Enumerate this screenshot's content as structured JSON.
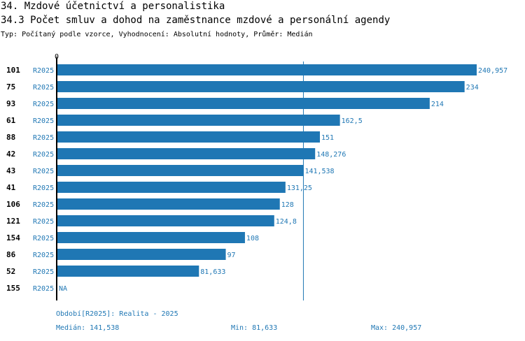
{
  "header": {
    "title": "34. Mzdové účetnictví a personalistika",
    "subtitle": "34.3 Počet smluv a dohod na zaměstnance mzdové a personální agendy",
    "type_line": "Typ: Počítaný podle vzorce, Vyhodnocení: Absolutní hodnoty, Průměr: Medián"
  },
  "footer": {
    "period": "Období[R2025]: Realita - 2025",
    "median": "Medián: 141,538",
    "min": "Min: 81,633",
    "max": "Max: 240,957"
  },
  "colors": {
    "bar": "#1f77b4",
    "label": "#1f77b4",
    "axis": "#000000"
  },
  "chart_data": {
    "type": "bar",
    "orientation": "horizontal",
    "axis_zero_label": "0",
    "xlim": [
      0,
      240.957
    ],
    "median_line": 141.538,
    "rows": [
      {
        "id": "101",
        "series": "R2025",
        "value": 240.957,
        "label": "240,957"
      },
      {
        "id": "75",
        "series": "R2025",
        "value": 234,
        "label": "234"
      },
      {
        "id": "93",
        "series": "R2025",
        "value": 214,
        "label": "214"
      },
      {
        "id": "61",
        "series": "R2025",
        "value": 162.5,
        "label": "162,5"
      },
      {
        "id": "88",
        "series": "R2025",
        "value": 151,
        "label": "151"
      },
      {
        "id": "42",
        "series": "R2025",
        "value": 148.276,
        "label": "148,276"
      },
      {
        "id": "43",
        "series": "R2025",
        "value": 141.538,
        "label": "141,538"
      },
      {
        "id": "41",
        "series": "R2025",
        "value": 131.25,
        "label": "131,25"
      },
      {
        "id": "106",
        "series": "R2025",
        "value": 128,
        "label": "128"
      },
      {
        "id": "121",
        "series": "R2025",
        "value": 124.8,
        "label": "124,8"
      },
      {
        "id": "154",
        "series": "R2025",
        "value": 108,
        "label": "108"
      },
      {
        "id": "86",
        "series": "R2025",
        "value": 97,
        "label": "97"
      },
      {
        "id": "52",
        "series": "R2025",
        "value": 81.633,
        "label": "81,633"
      },
      {
        "id": "155",
        "series": "R2025",
        "value": null,
        "label": "NA"
      }
    ]
  }
}
